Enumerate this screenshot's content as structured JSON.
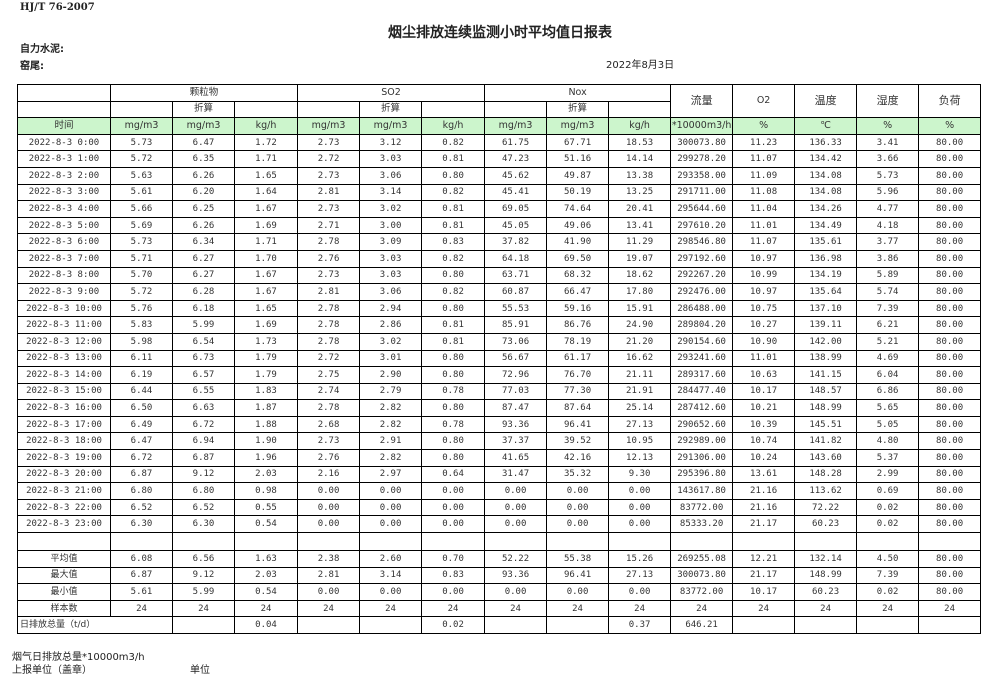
{
  "header": {
    "standard": "HJ/T  76-2007",
    "title": "烟尘排放连续监测小时平均值日报表",
    "company": "自力水泥:",
    "site": "窑尾:",
    "date": "2022年8月3日"
  },
  "table": {
    "groups": {
      "particulate": "颗粒物",
      "so2": "SO2",
      "nox": "Nox",
      "converted": "折算",
      "flow": "流量",
      "o2": "O2",
      "temp": "温度",
      "humidity": "湿度",
      "load": "负荷"
    },
    "units": [
      "时间",
      "mg/m3",
      "mg/m3",
      "kg/h",
      "mg/m3",
      "mg/m3",
      "kg/h",
      "mg/m3",
      "mg/m3",
      "kg/h",
      "*10000m3/h",
      "%",
      "℃",
      "%",
      "%"
    ],
    "rows": [
      [
        "2022-8-3 0:00",
        "5.73",
        "6.47",
        "1.72",
        "2.73",
        "3.12",
        "0.82",
        "61.75",
        "67.71",
        "18.53",
        "300073.80",
        "11.23",
        "136.33",
        "3.41",
        "80.00"
      ],
      [
        "2022-8-3 1:00",
        "5.72",
        "6.35",
        "1.71",
        "2.72",
        "3.03",
        "0.81",
        "47.23",
        "51.16",
        "14.14",
        "299278.20",
        "11.07",
        "134.42",
        "3.66",
        "80.00"
      ],
      [
        "2022-8-3 2:00",
        "5.63",
        "6.26",
        "1.65",
        "2.73",
        "3.06",
        "0.80",
        "45.62",
        "49.87",
        "13.38",
        "293358.00",
        "11.09",
        "134.08",
        "5.73",
        "80.00"
      ],
      [
        "2022-8-3 3:00",
        "5.61",
        "6.20",
        "1.64",
        "2.81",
        "3.14",
        "0.82",
        "45.41",
        "50.19",
        "13.25",
        "291711.00",
        "11.08",
        "134.08",
        "5.96",
        "80.00"
      ],
      [
        "2022-8-3 4:00",
        "5.66",
        "6.25",
        "1.67",
        "2.73",
        "3.02",
        "0.81",
        "69.05",
        "74.64",
        "20.41",
        "295644.60",
        "11.04",
        "134.26",
        "4.77",
        "80.00"
      ],
      [
        "2022-8-3 5:00",
        "5.69",
        "6.26",
        "1.69",
        "2.71",
        "3.00",
        "0.81",
        "45.05",
        "49.06",
        "13.41",
        "297610.20",
        "11.01",
        "134.49",
        "4.18",
        "80.00"
      ],
      [
        "2022-8-3 6:00",
        "5.73",
        "6.34",
        "1.71",
        "2.78",
        "3.09",
        "0.83",
        "37.82",
        "41.90",
        "11.29",
        "298546.80",
        "11.07",
        "135.61",
        "3.77",
        "80.00"
      ],
      [
        "2022-8-3 7:00",
        "5.71",
        "6.27",
        "1.70",
        "2.76",
        "3.03",
        "0.82",
        "64.18",
        "69.50",
        "19.07",
        "297192.60",
        "10.97",
        "136.98",
        "3.86",
        "80.00"
      ],
      [
        "2022-8-3 8:00",
        "5.70",
        "6.27",
        "1.67",
        "2.73",
        "3.03",
        "0.80",
        "63.71",
        "68.32",
        "18.62",
        "292267.20",
        "10.99",
        "134.19",
        "5.89",
        "80.00"
      ],
      [
        "2022-8-3 9:00",
        "5.72",
        "6.28",
        "1.67",
        "2.81",
        "3.06",
        "0.82",
        "60.87",
        "66.47",
        "17.80",
        "292476.00",
        "10.97",
        "135.64",
        "5.74",
        "80.00"
      ],
      [
        "2022-8-3 10:00",
        "5.76",
        "6.18",
        "1.65",
        "2.78",
        "2.94",
        "0.80",
        "55.53",
        "59.16",
        "15.91",
        "286488.00",
        "10.75",
        "137.10",
        "7.39",
        "80.00"
      ],
      [
        "2022-8-3 11:00",
        "5.83",
        "5.99",
        "1.69",
        "2.78",
        "2.86",
        "0.81",
        "85.91",
        "86.76",
        "24.90",
        "289804.20",
        "10.27",
        "139.11",
        "6.21",
        "80.00"
      ],
      [
        "2022-8-3 12:00",
        "5.98",
        "6.54",
        "1.73",
        "2.78",
        "3.02",
        "0.81",
        "73.06",
        "78.19",
        "21.20",
        "290154.60",
        "10.90",
        "142.00",
        "5.21",
        "80.00"
      ],
      [
        "2022-8-3 13:00",
        "6.11",
        "6.73",
        "1.79",
        "2.72",
        "3.01",
        "0.80",
        "56.67",
        "61.17",
        "16.62",
        "293241.60",
        "11.01",
        "138.99",
        "4.69",
        "80.00"
      ],
      [
        "2022-8-3 14:00",
        "6.19",
        "6.57",
        "1.79",
        "2.75",
        "2.90",
        "0.80",
        "72.96",
        "76.70",
        "21.11",
        "289317.60",
        "10.63",
        "141.15",
        "6.04",
        "80.00"
      ],
      [
        "2022-8-3 15:00",
        "6.44",
        "6.55",
        "1.83",
        "2.74",
        "2.79",
        "0.78",
        "77.03",
        "77.30",
        "21.91",
        "284477.40",
        "10.17",
        "148.57",
        "6.86",
        "80.00"
      ],
      [
        "2022-8-3 16:00",
        "6.50",
        "6.63",
        "1.87",
        "2.78",
        "2.82",
        "0.80",
        "87.47",
        "87.64",
        "25.14",
        "287412.60",
        "10.21",
        "148.99",
        "5.65",
        "80.00"
      ],
      [
        "2022-8-3 17:00",
        "6.49",
        "6.72",
        "1.88",
        "2.68",
        "2.82",
        "0.78",
        "93.36",
        "96.41",
        "27.13",
        "290652.60",
        "10.39",
        "145.51",
        "5.05",
        "80.00"
      ],
      [
        "2022-8-3 18:00",
        "6.47",
        "6.94",
        "1.90",
        "2.73",
        "2.91",
        "0.80",
        "37.37",
        "39.52",
        "10.95",
        "292989.00",
        "10.74",
        "141.82",
        "4.80",
        "80.00"
      ],
      [
        "2022-8-3 19:00",
        "6.72",
        "6.87",
        "1.96",
        "2.76",
        "2.82",
        "0.80",
        "41.65",
        "42.16",
        "12.13",
        "291306.00",
        "10.24",
        "143.60",
        "5.37",
        "80.00"
      ],
      [
        "2022-8-3 20:00",
        "6.87",
        "9.12",
        "2.03",
        "2.16",
        "2.97",
        "0.64",
        "31.47",
        "35.32",
        "9.30",
        "295396.80",
        "13.61",
        "148.28",
        "2.99",
        "80.00"
      ],
      [
        "2022-8-3 21:00",
        "6.80",
        "6.80",
        "0.98",
        "0.00",
        "0.00",
        "0.00",
        "0.00",
        "0.00",
        "0.00",
        "143617.80",
        "21.16",
        "113.62",
        "0.69",
        "80.00"
      ],
      [
        "2022-8-3 22:00",
        "6.52",
        "6.52",
        "0.55",
        "0.00",
        "0.00",
        "0.00",
        "0.00",
        "0.00",
        "0.00",
        "83772.00",
        "21.16",
        "72.22",
        "0.02",
        "80.00"
      ],
      [
        "2022-8-3 23:00",
        "6.30",
        "6.30",
        "0.54",
        "0.00",
        "0.00",
        "0.00",
        "0.00",
        "0.00",
        "0.00",
        "85333.20",
        "21.17",
        "60.23",
        "0.02",
        "80.00"
      ]
    ],
    "stats": [
      [
        "平均值",
        "6.08",
        "6.56",
        "1.63",
        "2.38",
        "2.60",
        "0.70",
        "52.22",
        "55.38",
        "15.26",
        "269255.08",
        "12.21",
        "132.14",
        "4.50",
        "80.00"
      ],
      [
        "最大值",
        "6.87",
        "9.12",
        "2.03",
        "2.81",
        "3.14",
        "0.83",
        "93.36",
        "96.41",
        "27.13",
        "300073.80",
        "21.17",
        "148.99",
        "7.39",
        "80.00"
      ],
      [
        "最小值",
        "5.61",
        "5.99",
        "0.54",
        "0.00",
        "0.00",
        "0.00",
        "0.00",
        "0.00",
        "0.00",
        "83772.00",
        "10.17",
        "60.23",
        "0.02",
        "80.00"
      ],
      [
        "样本数",
        "24",
        "24",
        "24",
        "24",
        "24",
        "24",
        "24",
        "24",
        "24",
        "24",
        "24",
        "24",
        "24",
        "24"
      ]
    ],
    "total": {
      "label": "日排放总量（t/d）",
      "particulate": "0.04",
      "so2": "0.02",
      "nox": "0.37",
      "flow": "646.21"
    }
  },
  "footer": {
    "flue_total": "烟气日排放总量*10000m3/h",
    "reporter": "上报单位（盖章）",
    "unit": "单位"
  }
}
